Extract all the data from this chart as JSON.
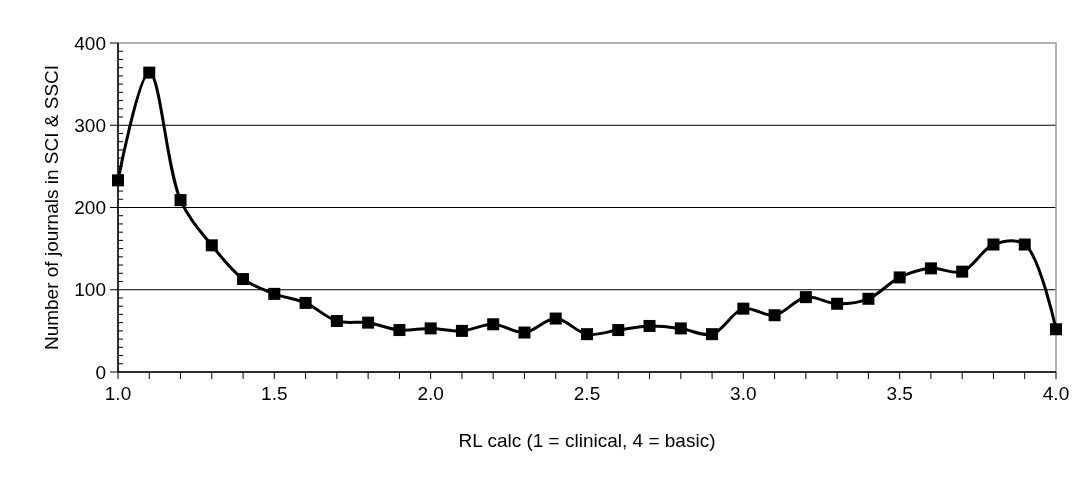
{
  "chart_data": {
    "type": "line",
    "xlabel": "RL calc (1 = clinical, 4 = basic)",
    "ylabel": "Number of journals in SCI & SSCI",
    "x": [
      1.0,
      1.1,
      1.2,
      1.3,
      1.4,
      1.5,
      1.6,
      1.7,
      1.8,
      1.9,
      2.0,
      2.1,
      2.2,
      2.3,
      2.4,
      2.5,
      2.6,
      2.7,
      2.8,
      2.9,
      3.0,
      3.1,
      3.2,
      3.3,
      3.4,
      3.5,
      3.6,
      3.7,
      3.8,
      3.9,
      4.0
    ],
    "series": [
      {
        "color": "#000000",
        "values": [
          233,
          364,
          209,
          154,
          113,
          95,
          84,
          62,
          60,
          51,
          53,
          50,
          58,
          48,
          65,
          46,
          51,
          56,
          53,
          46,
          77,
          69,
          91,
          83,
          89,
          115,
          126,
          122,
          155,
          155,
          52
        ]
      }
    ],
    "xlim": [
      1.0,
      4.0
    ],
    "xticks": [
      {
        "value": 1.0,
        "label": "1.0"
      },
      {
        "value": 1.1,
        "label": null
      },
      {
        "value": 1.2,
        "label": null
      },
      {
        "value": 1.3,
        "label": null
      },
      {
        "value": 1.4,
        "label": null
      },
      {
        "value": 1.5,
        "label": "1.5"
      },
      {
        "value": 1.6,
        "label": null
      },
      {
        "value": 1.7,
        "label": null
      },
      {
        "value": 1.8,
        "label": null
      },
      {
        "value": 1.9,
        "label": null
      },
      {
        "value": 2.0,
        "label": "2.0"
      },
      {
        "value": 2.1,
        "label": null
      },
      {
        "value": 2.2,
        "label": null
      },
      {
        "value": 2.3,
        "label": null
      },
      {
        "value": 2.4,
        "label": null
      },
      {
        "value": 2.5,
        "label": "2.5"
      },
      {
        "value": 2.6,
        "label": null
      },
      {
        "value": 2.7,
        "label": null
      },
      {
        "value": 2.8,
        "label": null
      },
      {
        "value": 2.9,
        "label": null
      },
      {
        "value": 3.0,
        "label": "3.0"
      },
      {
        "value": 3.1,
        "label": null
      },
      {
        "value": 3.2,
        "label": null
      },
      {
        "value": 3.3,
        "label": null
      },
      {
        "value": 3.4,
        "label": null
      },
      {
        "value": 3.5,
        "label": "3.5"
      },
      {
        "value": 3.6,
        "label": null
      },
      {
        "value": 3.7,
        "label": null
      },
      {
        "value": 3.8,
        "label": null
      },
      {
        "value": 3.9,
        "label": null
      },
      {
        "value": 4.0,
        "label": "4.0"
      }
    ],
    "ylim": [
      0,
      400
    ],
    "yticks": [
      0,
      {
        "value": 10,
        "label": null
      },
      {
        "value": 20,
        "label": null
      },
      {
        "value": 30,
        "label": null
      },
      {
        "value": 40,
        "label": null
      },
      {
        "value": 50,
        "label": null
      },
      {
        "value": 60,
        "label": null
      },
      {
        "value": 70,
        "label": null
      },
      {
        "value": 80,
        "label": null
      },
      {
        "value": 90,
        "label": null
      },
      100,
      {
        "value": 110,
        "label": null
      },
      {
        "value": 120,
        "label": null
      },
      {
        "value": 130,
        "label": null
      },
      {
        "value": 140,
        "label": null
      },
      {
        "value": 150,
        "label": null
      },
      {
        "value": 160,
        "label": null
      },
      {
        "value": 170,
        "label": null
      },
      {
        "value": 180,
        "label": null
      },
      {
        "value": 190,
        "label": null
      },
      200,
      {
        "value": 210,
        "label": null
      },
      {
        "value": 220,
        "label": null
      },
      {
        "value": 230,
        "label": null
      },
      {
        "value": 240,
        "label": null
      },
      {
        "value": 250,
        "label": null
      },
      {
        "value": 260,
        "label": null
      },
      {
        "value": 270,
        "label": null
      },
      {
        "value": 280,
        "label": null
      },
      {
        "value": 290,
        "label": null
      },
      300,
      {
        "value": 310,
        "label": null
      },
      {
        "value": 320,
        "label": null
      },
      {
        "value": 330,
        "label": null
      },
      {
        "value": 340,
        "label": null
      },
      {
        "value": 350,
        "label": null
      },
      {
        "value": 360,
        "label": null
      },
      {
        "value": 370,
        "label": null
      },
      {
        "value": 380,
        "label": null
      },
      {
        "value": 390,
        "label": null
      },
      400
    ],
    "grid": "y",
    "marker": "square",
    "line_style": "solid"
  }
}
